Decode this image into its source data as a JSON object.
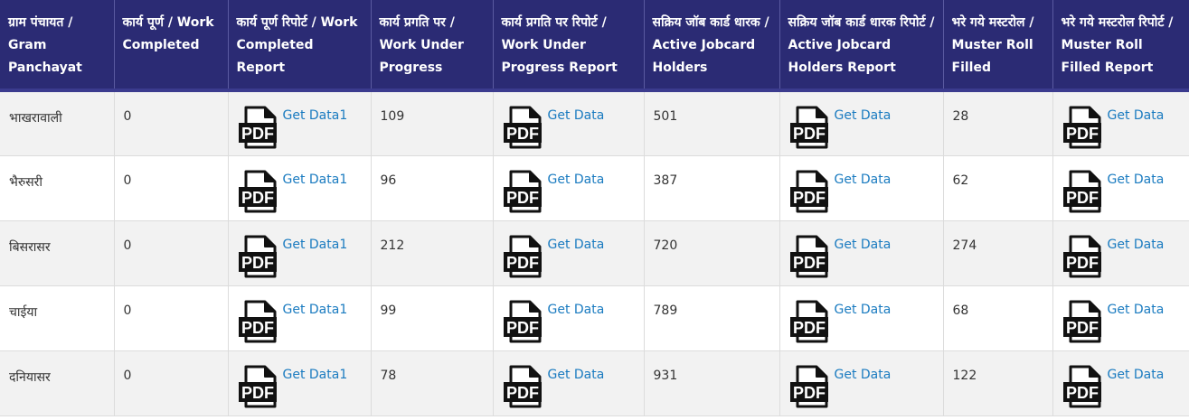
{
  "columns": [
    "ग्राम पंचायत / Gram Panchayat",
    "कार्य पूर्ण / Work Completed",
    "कार्य पूर्ण रिपोर्ट / Work Completed Report",
    "कार्य प्रगति पर / Work Under Progress",
    "कार्य प्रगति पर रिपोर्ट / Work Under Progress Report",
    "सक्रिय जॉब कार्ड धारक / Active Jobcard Holders",
    "सक्रिय जॉब कार्ड धारक रिपोर्ट / Active Jobcard Holders Report",
    "भरे गये मस्टरोल / Muster Roll Filled",
    "भरे गये मस्टरोल रिपोर्ट / Muster Roll Filled Report"
  ],
  "icon": "pdf-file-icon",
  "pdf_label": "PDF",
  "link_labels": {
    "work_completed": "Get Data1",
    "other": "Get Data"
  },
  "rows": [
    {
      "panchayat": "भाखरावाली",
      "work_completed": "0",
      "work_under_progress": "109",
      "active_jobcard_holders": "501",
      "muster_roll_filled": "28"
    },
    {
      "panchayat": "भैरुसरी",
      "work_completed": "0",
      "work_under_progress": "96",
      "active_jobcard_holders": "387",
      "muster_roll_filled": "62"
    },
    {
      "panchayat": "बिसरासर",
      "work_completed": "0",
      "work_under_progress": "212",
      "active_jobcard_holders": "720",
      "muster_roll_filled": "274"
    },
    {
      "panchayat": "चाईया",
      "work_completed": "0",
      "work_under_progress": "99",
      "active_jobcard_holders": "789",
      "muster_roll_filled": "68"
    },
    {
      "panchayat": "दनियासर",
      "work_completed": "0",
      "work_under_progress": "78",
      "active_jobcard_holders": "931",
      "muster_roll_filled": "122"
    }
  ],
  "colors": {
    "header_bg": "#2b2b74",
    "header_text": "#ffffff",
    "link": "#1a7bc0",
    "row_stripe": "#f2f2f2"
  }
}
